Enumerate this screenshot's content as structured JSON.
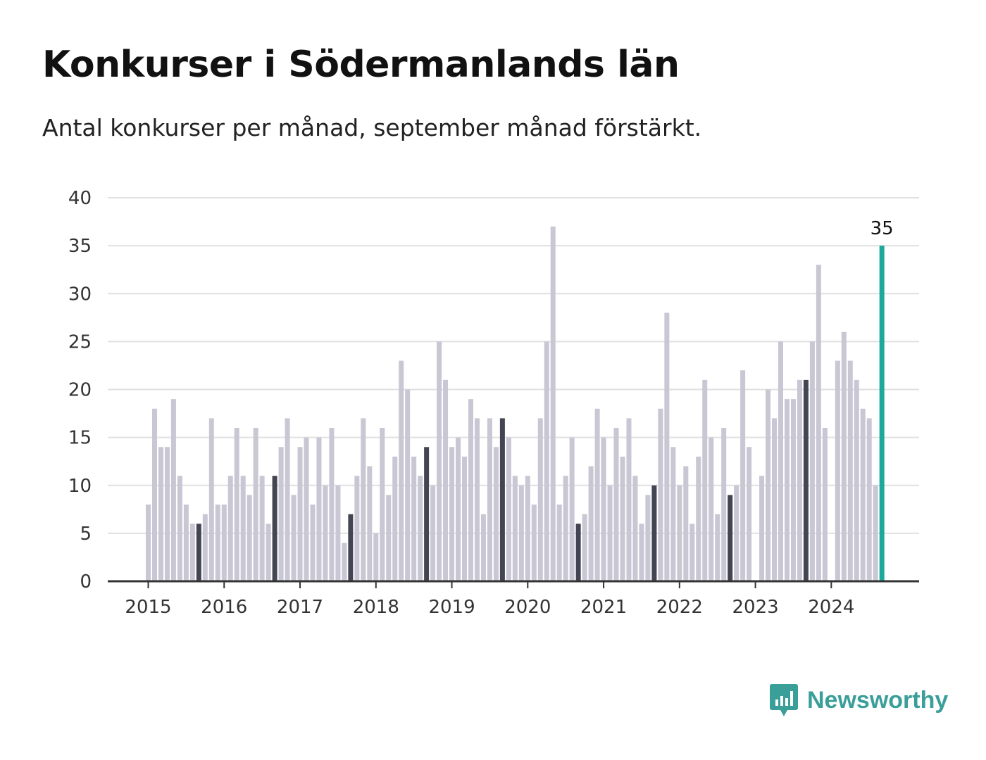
{
  "title": "Konkurser i Södermanlands län",
  "subtitle": "Antal konkurser per månad, september månad förstärkt.",
  "brand": "Newsworthy",
  "colors": {
    "bar_default": "#c8c7d3",
    "bar_september": "#444552",
    "bar_latest": "#1aa99a",
    "grid": "#e0e0e0",
    "axis": "#333333",
    "brand": "#3a9e99"
  },
  "chart_data": {
    "type": "bar",
    "ylim": [
      0,
      40
    ],
    "yticks": [
      0,
      5,
      10,
      15,
      20,
      25,
      30,
      35,
      40
    ],
    "xticks": [
      "2015",
      "2016",
      "2017",
      "2018",
      "2019",
      "2020",
      "2021",
      "2022",
      "2023",
      "2024"
    ],
    "x_range": [
      "2015-01",
      "2024-09"
    ],
    "values": [
      8,
      18,
      14,
      14,
      19,
      11,
      8,
      6,
      6,
      7,
      17,
      8,
      8,
      11,
      16,
      11,
      9,
      16,
      11,
      6,
      11,
      14,
      17,
      9,
      14,
      15,
      8,
      15,
      10,
      16,
      10,
      4,
      7,
      11,
      17,
      12,
      5,
      16,
      9,
      13,
      23,
      20,
      13,
      11,
      14,
      10,
      25,
      21,
      14,
      15,
      13,
      19,
      17,
      7,
      17,
      14,
      17,
      15,
      11,
      10,
      11,
      8,
      17,
      25,
      37,
      8,
      11,
      15,
      6,
      7,
      12,
      18,
      15,
      10,
      16,
      13,
      17,
      11,
      6,
      9,
      10,
      18,
      28,
      14,
      10,
      12,
      6,
      13,
      21,
      15,
      7,
      16,
      9,
      10,
      22,
      14,
      0,
      11,
      20,
      17,
      25,
      19,
      19,
      21,
      21,
      25,
      33,
      16,
      0,
      23,
      26,
      23,
      21,
      18,
      17,
      10,
      35
    ],
    "highlight": "september",
    "latest_label": "35"
  }
}
